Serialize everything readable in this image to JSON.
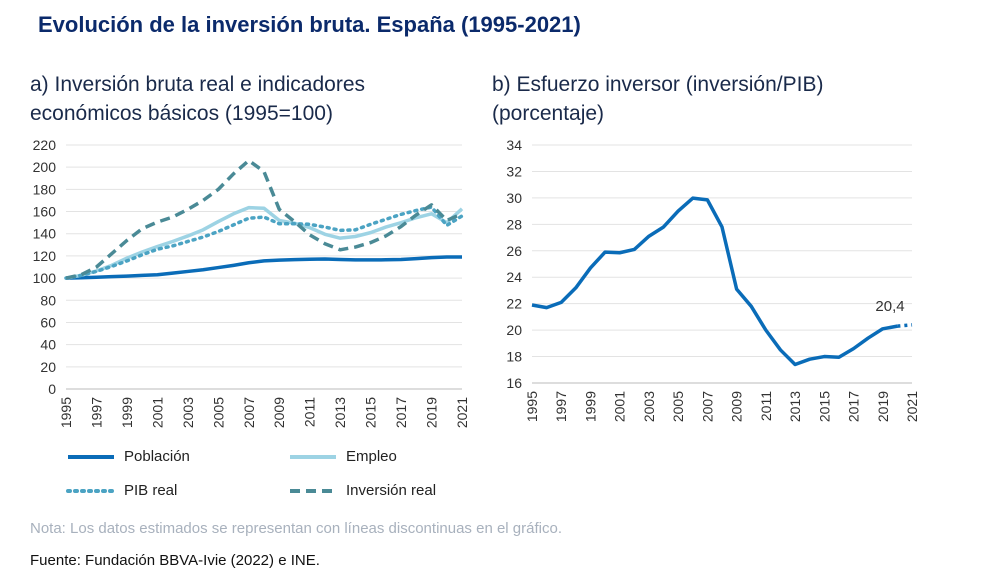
{
  "title": "Evolución de la inversión bruta. España (1995-2021)",
  "note": "Nota: Los datos estimados se representan con líneas discontinuas en el gráfico.",
  "source": "Fuente: Fundación BBVA-Ivie (2022) e INE.",
  "colors": {
    "poblacion": "#0a6cb8",
    "empleo": "#9dd3e4",
    "pib": "#4ba3c3",
    "inversion": "#4a8a96",
    "grid": "#e3e3e3"
  },
  "chart_data": [
    {
      "type": "line",
      "title": "a) Inversión bruta real e indicadores económicos básicos (1995=100)",
      "x": [
        1995,
        1996,
        1997,
        1998,
        1999,
        2000,
        2001,
        2002,
        2003,
        2004,
        2005,
        2006,
        2007,
        2008,
        2009,
        2010,
        2011,
        2012,
        2013,
        2014,
        2015,
        2016,
        2017,
        2018,
        2019,
        2020,
        2021
      ],
      "xticks": [
        "1995",
        "1997",
        "1999",
        "2001",
        "2003",
        "2005",
        "2007",
        "2009",
        "2011",
        "2013",
        "2015",
        "2017",
        "2019",
        "2021"
      ],
      "ylim": [
        0,
        220
      ],
      "yticks": [
        "0",
        "20",
        "40",
        "60",
        "80",
        "100",
        "120",
        "140",
        "160",
        "180",
        "200",
        "220"
      ],
      "grid": true,
      "legend_position": "bottom",
      "series": [
        {
          "key": "poblacion",
          "name": "Población",
          "style": "solid",
          "values": [
            100,
            100.3,
            100.8,
            101.3,
            101.8,
            102.4,
            103,
            104.5,
            106,
            107.5,
            109.5,
            111.5,
            113.8,
            115.5,
            116.2,
            116.6,
            117,
            117.2,
            116.8,
            116.4,
            116.4,
            116.5,
            116.8,
            117.5,
            118.5,
            119,
            119
          ]
        },
        {
          "key": "empleo",
          "name": "Empleo",
          "style": "solid",
          "values": [
            100,
            102.5,
            106.5,
            111.5,
            118,
            123.5,
            128.5,
            133,
            138,
            143.5,
            151,
            158,
            163.5,
            163,
            152,
            149.5,
            145.5,
            139.5,
            136,
            137.5,
            141,
            146,
            150,
            154.5,
            158,
            150,
            162.5
          ]
        },
        {
          "key": "pib",
          "name": "PIB real",
          "style": "dotted",
          "values": [
            100,
            102.5,
            106,
            110.5,
            115.5,
            121,
            126,
            129,
            133,
            137,
            142,
            148,
            154,
            155,
            149,
            149,
            148.5,
            146,
            143,
            143.5,
            148.5,
            153,
            157.5,
            161,
            164,
            147.5,
            156
          ]
        },
        {
          "key": "inversion",
          "name": "Inversión real",
          "style": "dashed",
          "values": [
            100,
            103,
            110,
            122,
            134,
            144.5,
            150.5,
            155,
            162,
            170,
            180,
            194,
            206,
            196,
            162,
            151,
            139,
            131,
            125.5,
            128,
            132,
            138,
            146.5,
            157,
            166,
            152,
            158
          ]
        }
      ]
    },
    {
      "type": "line",
      "title": "b) Esfuerzo inversor (inversión/PIB) (porcentaje)",
      "x": [
        1995,
        1996,
        1997,
        1998,
        1999,
        2000,
        2001,
        2002,
        2003,
        2004,
        2005,
        2006,
        2007,
        2008,
        2009,
        2010,
        2011,
        2012,
        2013,
        2014,
        2015,
        2016,
        2017,
        2018,
        2019,
        2020,
        2021
      ],
      "xticks": [
        "1995",
        "1997",
        "1999",
        "2001",
        "2003",
        "2005",
        "2007",
        "2009",
        "2011",
        "2013",
        "2015",
        "2017",
        "2019",
        "2021"
      ],
      "ylim": [
        16,
        34
      ],
      "yticks": [
        "16",
        "18",
        "20",
        "22",
        "24",
        "26",
        "28",
        "30",
        "32",
        "34"
      ],
      "grid": true,
      "annotation": "20,4",
      "series": [
        {
          "key": "esfuerzo",
          "name": "",
          "style": "solid",
          "values": [
            21.9,
            21.7,
            22.1,
            23.2,
            24.7,
            25.9,
            25.85,
            26.1,
            27.1,
            27.8,
            29,
            29.98,
            29.85,
            27.8,
            23.1,
            21.8,
            20,
            18.5,
            17.4,
            17.8,
            18,
            17.95,
            18.6,
            19.4,
            20.1,
            20.3,
            20.4
          ],
          "estimated_from_index": 25
        }
      ]
    }
  ]
}
